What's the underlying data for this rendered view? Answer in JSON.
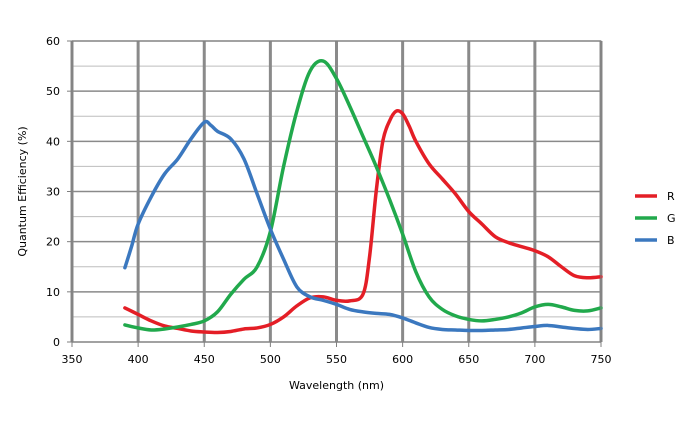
{
  "chart_data": {
    "type": "line",
    "title": "",
    "xlabel": "Wavelength (nm)",
    "ylabel": "Quantum Efficiency (%)",
    "xlim": [
      350,
      750
    ],
    "ylim": [
      0,
      60
    ],
    "x_ticks": [
      350,
      400,
      450,
      500,
      550,
      600,
      650,
      700,
      750
    ],
    "y_ticks": [
      0,
      10,
      20,
      30,
      40,
      50,
      60
    ],
    "x_tick_labels": [
      "350",
      "400",
      "450",
      "500",
      "550",
      "600",
      "650",
      "700",
      "750"
    ],
    "y_tick_labels": [
      "0",
      "10",
      "20",
      "30",
      "40",
      "50",
      "60"
    ],
    "grid": true,
    "legend_position": "right",
    "series": [
      {
        "name": "R",
        "color": "#e41e26",
        "points": [
          [
            390,
            6.8
          ],
          [
            400,
            5.5
          ],
          [
            410,
            4.2
          ],
          [
            420,
            3.2
          ],
          [
            430,
            2.7
          ],
          [
            440,
            2.2
          ],
          [
            450,
            2.0
          ],
          [
            460,
            1.9
          ],
          [
            470,
            2.1
          ],
          [
            480,
            2.6
          ],
          [
            490,
            2.8
          ],
          [
            500,
            3.5
          ],
          [
            510,
            5.0
          ],
          [
            520,
            7.2
          ],
          [
            530,
            8.8
          ],
          [
            540,
            9.0
          ],
          [
            550,
            8.3
          ],
          [
            560,
            8.2
          ],
          [
            570,
            9.5
          ],
          [
            575,
            17.0
          ],
          [
            580,
            30.0
          ],
          [
            585,
            40.0
          ],
          [
            590,
            44.0
          ],
          [
            595,
            46.0
          ],
          [
            600,
            45.5
          ],
          [
            605,
            43.0
          ],
          [
            610,
            40.0
          ],
          [
            620,
            35.5
          ],
          [
            630,
            32.5
          ],
          [
            640,
            29.5
          ],
          [
            650,
            26.0
          ],
          [
            660,
            23.5
          ],
          [
            670,
            21.0
          ],
          [
            680,
            19.8
          ],
          [
            690,
            19.0
          ],
          [
            700,
            18.2
          ],
          [
            710,
            17.0
          ],
          [
            720,
            15.0
          ],
          [
            730,
            13.2
          ],
          [
            740,
            12.8
          ],
          [
            750,
            13.0
          ]
        ]
      },
      {
        "name": "G",
        "color": "#21a94c",
        "points": [
          [
            390,
            3.4
          ],
          [
            400,
            2.8
          ],
          [
            410,
            2.4
          ],
          [
            420,
            2.6
          ],
          [
            430,
            3.0
          ],
          [
            440,
            3.5
          ],
          [
            450,
            4.2
          ],
          [
            460,
            6.0
          ],
          [
            470,
            9.5
          ],
          [
            480,
            12.5
          ],
          [
            490,
            15.0
          ],
          [
            500,
            22.0
          ],
          [
            510,
            35.0
          ],
          [
            520,
            46.0
          ],
          [
            530,
            54.0
          ],
          [
            540,
            56.0
          ],
          [
            550,
            52.5
          ],
          [
            560,
            47.0
          ],
          [
            570,
            41.0
          ],
          [
            580,
            35.0
          ],
          [
            590,
            28.5
          ],
          [
            600,
            21.5
          ],
          [
            610,
            14.0
          ],
          [
            620,
            9.0
          ],
          [
            630,
            6.5
          ],
          [
            640,
            5.2
          ],
          [
            650,
            4.5
          ],
          [
            660,
            4.2
          ],
          [
            670,
            4.5
          ],
          [
            680,
            5.0
          ],
          [
            690,
            5.8
          ],
          [
            700,
            7.0
          ],
          [
            710,
            7.5
          ],
          [
            720,
            7.0
          ],
          [
            730,
            6.3
          ],
          [
            740,
            6.2
          ],
          [
            750,
            6.8
          ]
        ]
      },
      {
        "name": "B",
        "color": "#3b78bf",
        "points": [
          [
            390,
            14.8
          ],
          [
            395,
            19.0
          ],
          [
            400,
            23.5
          ],
          [
            410,
            29.0
          ],
          [
            420,
            33.5
          ],
          [
            430,
            36.5
          ],
          [
            440,
            40.5
          ],
          [
            450,
            43.8
          ],
          [
            455,
            43.2
          ],
          [
            460,
            42.0
          ],
          [
            470,
            40.5
          ],
          [
            480,
            36.5
          ],
          [
            490,
            29.5
          ],
          [
            500,
            22.5
          ],
          [
            510,
            16.5
          ],
          [
            520,
            11.0
          ],
          [
            530,
            9.0
          ],
          [
            540,
            8.3
          ],
          [
            550,
            7.5
          ],
          [
            560,
            6.5
          ],
          [
            570,
            6.0
          ],
          [
            580,
            5.7
          ],
          [
            590,
            5.5
          ],
          [
            600,
            4.8
          ],
          [
            610,
            3.8
          ],
          [
            620,
            2.9
          ],
          [
            630,
            2.5
          ],
          [
            640,
            2.4
          ],
          [
            650,
            2.3
          ],
          [
            660,
            2.3
          ],
          [
            670,
            2.4
          ],
          [
            680,
            2.5
          ],
          [
            690,
            2.8
          ],
          [
            700,
            3.1
          ],
          [
            710,
            3.3
          ],
          [
            720,
            3.0
          ],
          [
            730,
            2.7
          ],
          [
            740,
            2.5
          ],
          [
            750,
            2.7
          ]
        ]
      }
    ]
  }
}
